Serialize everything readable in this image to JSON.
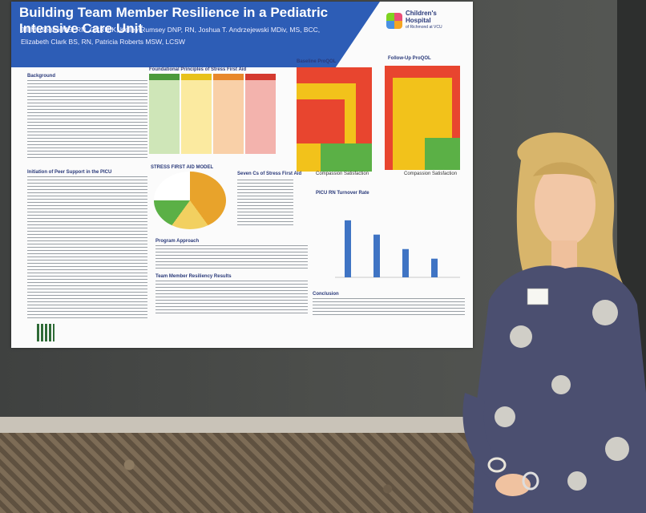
{
  "poster": {
    "title": "Building Team Member Resilience in a Pediatric Intensive Care Unit",
    "authors_line1": "Jill McGehee MS, RN, CCRN-K, Kelley Rumsey DNP, RN, Joshua T. Andrzejewski MDiv, MS, BCC,",
    "authors_line2": "Elizabeth Clark BS, RN, Patricia Roberts MSW, LCSW",
    "logo_line1": "Children's",
    "logo_line2": "Hospital",
    "logo_line3": "of Richmond at VCU",
    "sections": {
      "background": "Background",
      "foundational": "Foundational Principles of Stress First Aid",
      "baseline": "Baseline ProQOL",
      "followup": "Follow-Up ProQOL",
      "initiation": "Initiation of Peer Support in the PICU",
      "model": "STRESS FIRST AID MODEL",
      "seven_cs": "Seven Cs of Stress First Aid",
      "turnover": "PICU RN Turnover Rate",
      "approach": "Program Approach",
      "results": "Team Member Resiliency Results",
      "conclusion": "Conclusion"
    },
    "axis_caption": "Compassion Satisfaction",
    "colors": {
      "banner": "#2d5db6",
      "heat_red": "#e8452f",
      "heat_yellow": "#f2c21b",
      "heat_green": "#5bb046",
      "bars": "#3f74c4"
    }
  },
  "chart_data": {
    "type": "bar",
    "title": "PICU RN Turnover Rate",
    "categories": [
      "",
      "",
      "",
      ""
    ],
    "values": [
      8.27,
      6.2,
      4.1,
      2.71
    ],
    "ylim": [
      0,
      10
    ]
  }
}
